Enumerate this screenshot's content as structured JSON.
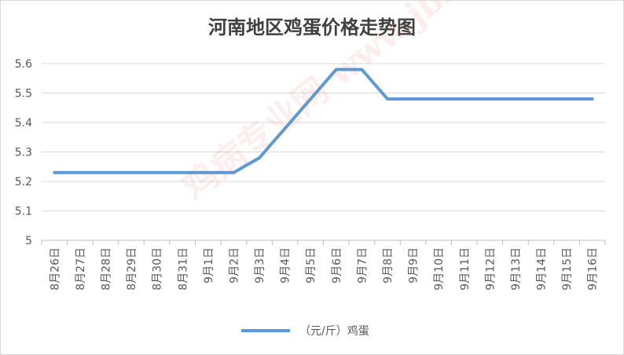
{
  "chart_data": {
    "type": "line",
    "title": "河南地区鸡蛋价格走势图",
    "categories": [
      "8月26日",
      "8月27日",
      "8月28日",
      "8月29日",
      "8月30日",
      "8月31日",
      "9月1日",
      "9月2日",
      "9月3日",
      "9月4日",
      "9月5日",
      "9月6日",
      "9月7日",
      "9月8日",
      "9月9日",
      "9月10日",
      "9月11日",
      "9月12日",
      "9月13日",
      "9月14日",
      "9月15日",
      "9月16日"
    ],
    "series": [
      {
        "name": "（元/斤）鸡蛋",
        "values": [
          5.23,
          5.23,
          5.23,
          5.23,
          5.23,
          5.23,
          5.23,
          5.23,
          5.28,
          5.38,
          5.48,
          5.58,
          5.58,
          5.48,
          5.48,
          5.48,
          5.48,
          5.48,
          5.48,
          5.48,
          5.48,
          5.48
        ]
      }
    ],
    "ylim": [
      5,
      5.6
    ],
    "yticks": [
      "5",
      "5.1",
      "5.2",
      "5.3",
      "5.4",
      "5.5",
      "5.6"
    ],
    "grid": true,
    "legend_position": "bottom",
    "line_color": "#5b9bd5",
    "grid_color": "#d9d9d9"
  },
  "watermark": "鸡病专业网 www.jbzyw.com"
}
